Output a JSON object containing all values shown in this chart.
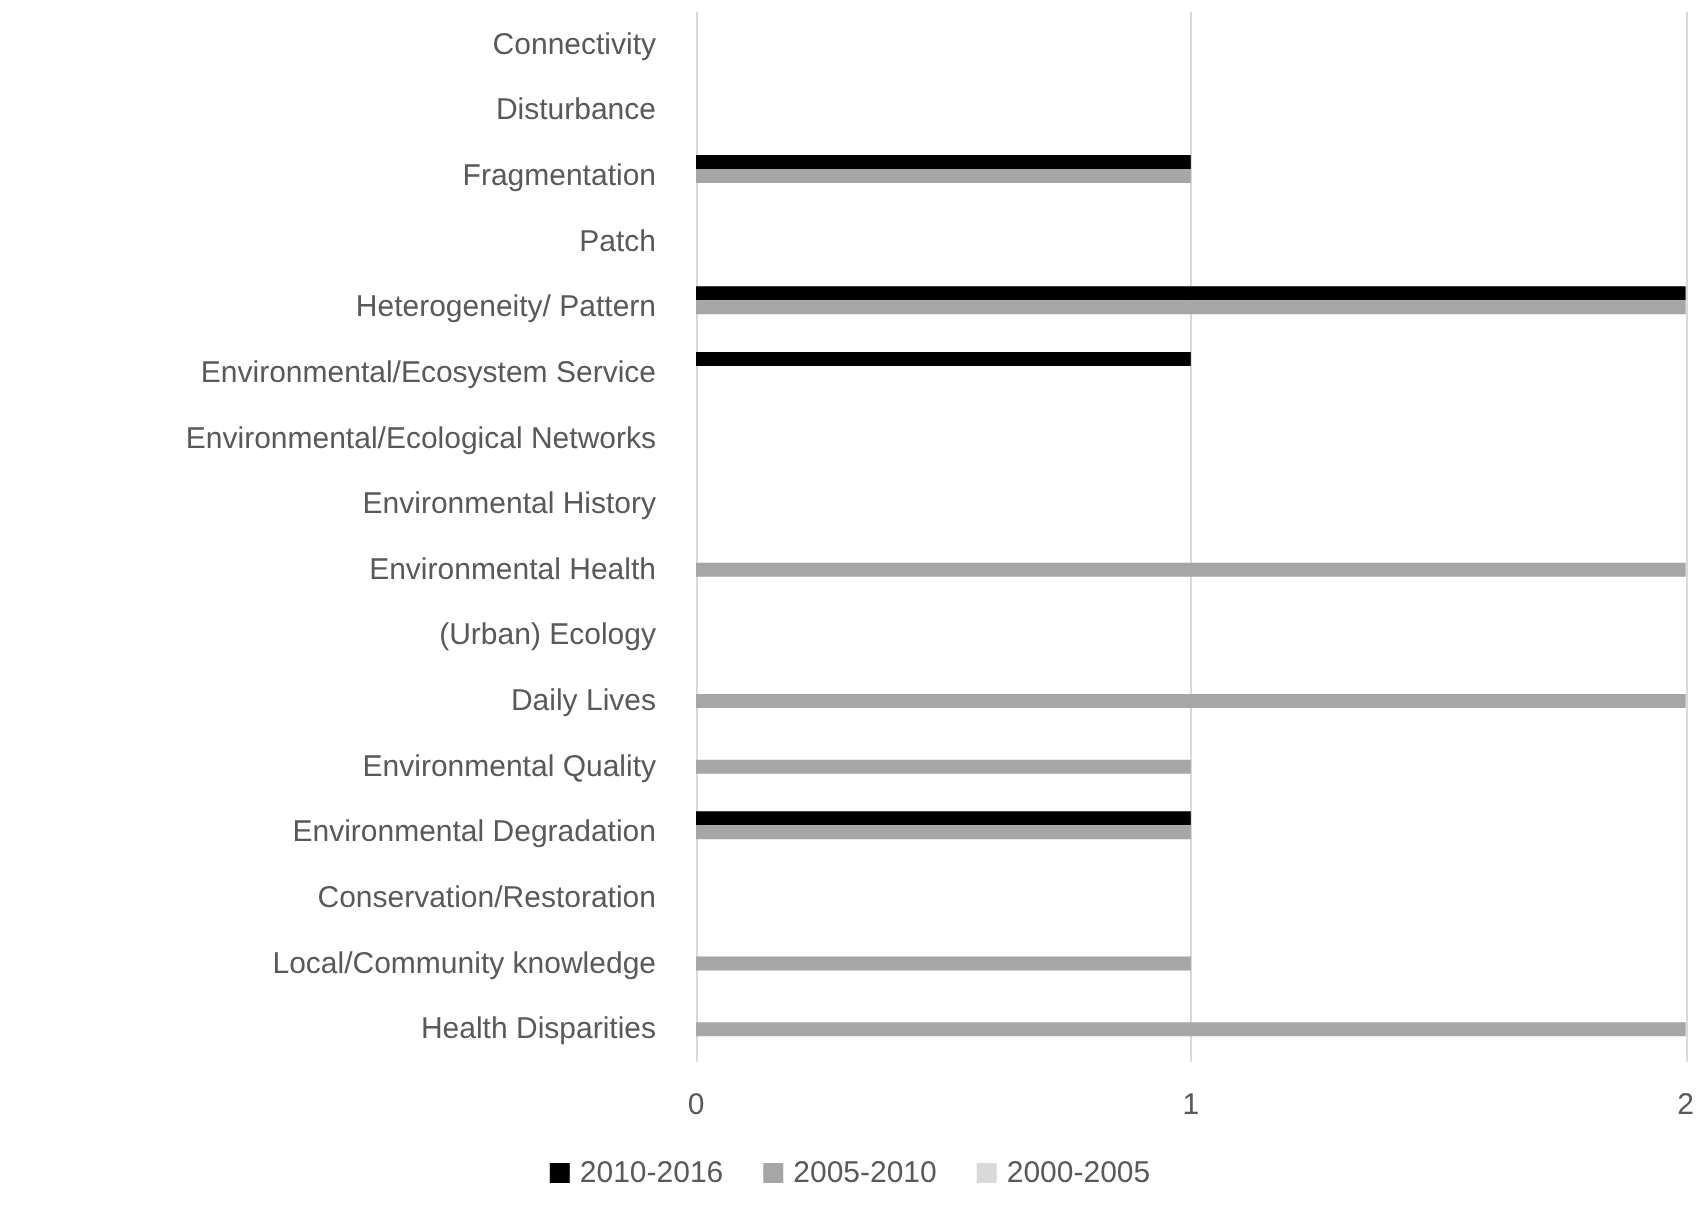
{
  "chart_data": {
    "type": "bar",
    "orientation": "horizontal",
    "categories": [
      "Connectivity",
      "Disturbance",
      "Fragmentation",
      "Patch",
      "Heterogeneity/ Pattern",
      "Environmental/Ecosystem Service",
      "Environmental/Ecological Networks",
      "Environmental History",
      "Environmental Health",
      "(Urban) Ecology",
      "Daily Lives",
      "Environmental Quality",
      "Environmental Degradation",
      "Conservation/Restoration",
      "Local/Community knowledge",
      "Health Disparities"
    ],
    "series": [
      {
        "name": "2010-2016",
        "color": "#000000",
        "values": [
          0,
          0,
          1,
          0,
          2,
          1,
          0,
          0,
          0,
          0,
          0,
          0,
          1,
          0,
          0,
          0
        ]
      },
      {
        "name": "2005-2010",
        "color": "#a6a6a6",
        "values": [
          0,
          0,
          1,
          0,
          2,
          0,
          0,
          0,
          2,
          0,
          2,
          1,
          1,
          0,
          1,
          2
        ]
      },
      {
        "name": "2000-2005",
        "color": "#d9d9d9",
        "values": [
          0,
          0,
          0,
          0,
          0,
          0,
          0,
          0,
          0,
          0,
          0,
          0,
          0,
          0,
          0,
          0
        ]
      }
    ],
    "xlim": [
      0,
      2
    ],
    "xticks": [
      0,
      1,
      2
    ],
    "grid": "x",
    "legend": "bottom"
  }
}
